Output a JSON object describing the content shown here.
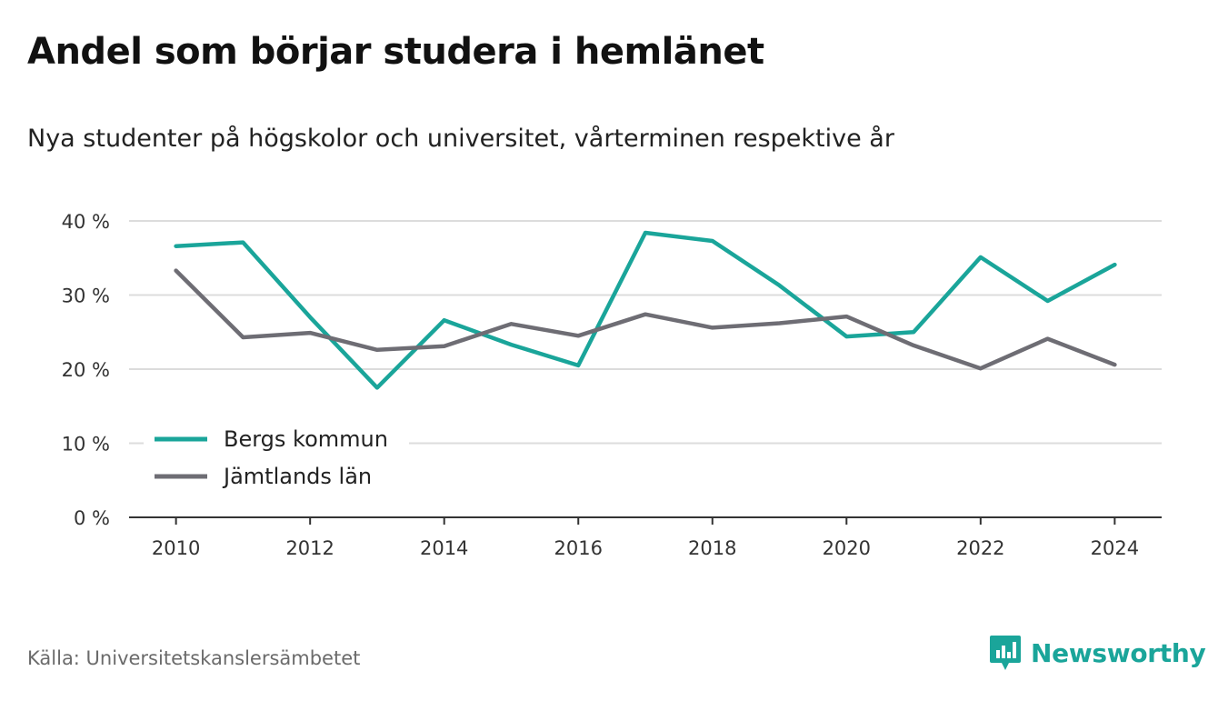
{
  "title": "Andel som börjar studera i hemlänet",
  "subtitle": "Nya studenter på högskolor och universitet, vårterminen respektive år",
  "source": "Källa: Universitetskanslersämbetet",
  "brand": {
    "name": "Newsworthy",
    "icon": "newsworthy-logo-icon",
    "color": "#1aa59a"
  },
  "chart_data": {
    "type": "line",
    "x": [
      2010,
      2011,
      2012,
      2013,
      2014,
      2015,
      2016,
      2017,
      2018,
      2019,
      2020,
      2021,
      2022,
      2023,
      2024
    ],
    "xlim": [
      2009.3,
      2024.7
    ],
    "ylim": [
      0,
      40
    ],
    "x_ticks": [
      "2010",
      "2012",
      "2014",
      "2016",
      "2018",
      "2020",
      "2022",
      "2024"
    ],
    "y_ticks": [
      "0 %",
      "10 %",
      "20 %",
      "30 %",
      "40 %"
    ],
    "grid": "horizontal",
    "legend_position": "bottom-left",
    "series": [
      {
        "name": "Bergs kommun",
        "color": "#1aa59a",
        "values": [
          36.6,
          37.1,
          27.0,
          17.5,
          26.6,
          23.3,
          20.5,
          38.4,
          37.3,
          31.3,
          24.4,
          25.0,
          35.1,
          29.2,
          34.1
        ]
      },
      {
        "name": "Jämtlands län",
        "color": "#6e6d74",
        "values": [
          33.3,
          24.3,
          24.9,
          22.6,
          23.1,
          26.1,
          24.5,
          27.4,
          25.6,
          26.2,
          27.1,
          23.2,
          20.1,
          24.1,
          20.6
        ]
      }
    ]
  }
}
